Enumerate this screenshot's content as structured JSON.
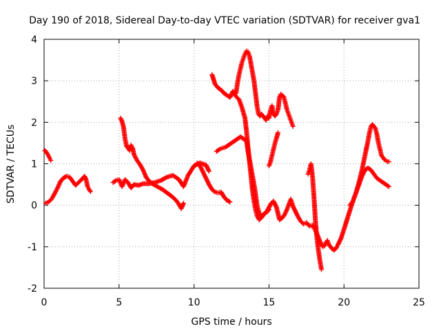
{
  "chart_data": {
    "type": "scatter",
    "title": "Day 190 of 2018, Sidereal Day-to-day VTEC variation (SDTVAR) for receiver gva1",
    "xlabel": "GPS time / hours",
    "ylabel": "SDTVAR / TECUs",
    "xlim": [
      0,
      25
    ],
    "ylim": [
      -2,
      4
    ],
    "x_ticks": [
      "0",
      "5",
      "10",
      "15",
      "20",
      "25"
    ],
    "y_ticks": [
      "-2",
      "-1",
      "0",
      "1",
      "2",
      "3",
      "4"
    ],
    "grid": true,
    "marker": "plus",
    "color": "#ff0000",
    "series": [
      {
        "x": [
          0.05,
          0.15,
          0.25,
          0.35,
          0.45
        ],
        "y": [
          1.32,
          1.28,
          1.22,
          1.15,
          1.08
        ]
      },
      {
        "x": [
          0.1,
          0.3,
          0.5,
          0.7,
          0.9,
          1.1,
          1.3,
          1.5,
          1.7,
          1.9,
          2.1,
          2.3,
          2.5,
          2.7,
          2.8,
          2.9,
          3.0,
          3.1
        ],
        "y": [
          0.05,
          0.08,
          0.15,
          0.28,
          0.42,
          0.58,
          0.66,
          0.7,
          0.68,
          0.58,
          0.48,
          0.55,
          0.62,
          0.7,
          0.62,
          0.45,
          0.38,
          0.33
        ]
      },
      {
        "x": [
          4.6,
          4.8,
          5.0,
          5.2,
          5.4,
          5.6,
          5.8,
          6.0,
          6.3,
          6.6,
          7.0,
          7.4,
          7.8,
          8.2,
          8.6,
          9.0,
          9.3,
          9.6,
          10.0,
          10.4,
          10.8,
          11.0
        ],
        "y": [
          0.55,
          0.6,
          0.62,
          0.45,
          0.62,
          0.55,
          0.42,
          0.5,
          0.48,
          0.52,
          0.52,
          0.55,
          0.6,
          0.68,
          0.72,
          0.62,
          0.45,
          0.72,
          0.95,
          1.02,
          0.97,
          0.82
        ]
      },
      {
        "x": [
          5.1,
          5.2,
          5.3,
          5.4,
          5.5,
          5.6,
          5.7,
          5.8,
          5.9,
          6.0,
          6.2,
          6.4,
          6.6,
          6.8,
          7.0,
          7.3,
          7.6,
          7.9,
          8.2,
          8.5,
          8.8,
          9.0,
          9.15,
          9.3
        ],
        "y": [
          2.1,
          2.02,
          1.88,
          1.6,
          1.42,
          1.38,
          1.32,
          1.45,
          1.38,
          1.22,
          1.08,
          0.98,
          0.85,
          0.68,
          0.58,
          0.5,
          0.44,
          0.38,
          0.3,
          0.22,
          0.12,
          0.02,
          -0.08,
          0.05
        ]
      },
      {
        "x": [
          10.2,
          10.4,
          10.6,
          10.8,
          11.0,
          11.2,
          11.4,
          11.6,
          11.8,
          12.0,
          12.2,
          12.4
        ],
        "y": [
          1.02,
          0.95,
          0.8,
          0.65,
          0.5,
          0.38,
          0.32,
          0.3,
          0.32,
          0.2,
          0.12,
          0.08
        ]
      },
      {
        "x": [
          11.2,
          11.4,
          11.6,
          11.8,
          12.0,
          12.2,
          12.4,
          12.6,
          12.8,
          13.0,
          13.2,
          13.4,
          13.5,
          13.6,
          13.7,
          13.8,
          13.9,
          14.0,
          14.1,
          14.2,
          14.35,
          14.5,
          14.7,
          14.85,
          15.0,
          15.15,
          15.3,
          15.5,
          15.7,
          15.9,
          16.05,
          16.2,
          16.35,
          16.45,
          16.55
        ],
        "y": [
          3.15,
          2.92,
          2.83,
          2.78,
          2.7,
          2.65,
          2.6,
          2.75,
          2.62,
          2.55,
          2.35,
          2.1,
          1.78,
          1.4,
          1.05,
          0.7,
          0.35,
          0.1,
          -0.1,
          -0.25,
          -0.35,
          -0.3,
          -0.2,
          -0.15,
          -0.05,
          0.05,
          0.1,
          -0.05,
          -0.35,
          -0.3,
          -0.22,
          -0.1,
          0.05,
          0.15,
          0.05
        ]
      },
      {
        "x": [
          11.5,
          11.7,
          11.9,
          12.1,
          12.3,
          12.5,
          12.7,
          12.9,
          13.1,
          13.3,
          13.5,
          13.6,
          13.75,
          13.9,
          14.05,
          14.2,
          14.35,
          14.5,
          14.7,
          14.9,
          15.0
        ],
        "y": [
          1.3,
          1.35,
          1.38,
          1.4,
          1.45,
          1.5,
          1.55,
          1.6,
          1.65,
          1.6,
          1.55,
          1.3,
          1.0,
          0.7,
          0.4,
          0.0,
          -0.2,
          -0.25,
          -0.2,
          -0.15,
          -0.1
        ]
      },
      {
        "x": [
          12.8,
          12.9,
          13.0,
          13.1,
          13.2,
          13.3,
          13.4,
          13.5,
          13.6,
          13.7,
          13.8,
          13.9,
          14.0,
          14.1,
          14.2,
          14.3,
          14.4,
          14.5,
          14.6,
          14.7,
          14.8,
          14.9,
          15.0,
          15.1,
          15.2,
          15.3,
          15.4,
          15.5,
          15.6,
          15.7,
          15.8,
          15.9,
          16.0,
          16.1,
          16.2,
          16.3,
          16.4,
          16.5,
          16.6
        ],
        "y": [
          2.7,
          2.95,
          3.15,
          3.3,
          3.45,
          3.55,
          3.65,
          3.72,
          3.7,
          3.6,
          3.4,
          3.2,
          3.0,
          2.7,
          2.4,
          2.2,
          2.15,
          2.2,
          2.15,
          2.1,
          2.05,
          2.15,
          2.1,
          2.3,
          2.4,
          2.2,
          2.15,
          2.2,
          2.3,
          2.6,
          2.68,
          2.65,
          2.6,
          2.45,
          2.3,
          2.2,
          2.1,
          2.0,
          1.9
        ]
      },
      {
        "x": [
          15.0,
          15.1,
          15.2,
          15.3,
          15.4,
          15.5,
          15.6
        ],
        "y": [
          0.95,
          1.05,
          1.2,
          1.35,
          1.5,
          1.62,
          1.75
        ]
      },
      {
        "x": [
          16.5,
          16.7,
          16.9,
          17.1,
          17.3,
          17.5,
          17.7,
          17.9,
          18.1,
          18.3,
          18.5,
          18.6,
          18.7,
          18.8,
          18.9,
          19.0,
          19.1,
          19.2,
          19.35,
          19.5,
          19.6
        ],
        "y": [
          0.05,
          -0.1,
          -0.25,
          -0.38,
          -0.45,
          -0.42,
          -0.5,
          -0.48,
          -0.6,
          -0.78,
          -0.95,
          -1.0,
          -0.98,
          -0.9,
          -0.85,
          -0.95,
          -1.0,
          -1.05,
          -1.08,
          -1.02,
          -0.95
        ]
      },
      {
        "x": [
          17.6,
          17.7,
          17.8,
          17.9,
          18.0,
          18.1,
          18.2,
          18.3,
          18.4,
          18.5
        ],
        "y": [
          0.75,
          0.85,
          1.0,
          0.7,
          0.2,
          -0.4,
          -0.8,
          -1.1,
          -1.35,
          -1.55
        ]
      },
      {
        "x": [
          19.6,
          19.8,
          20.0,
          20.2,
          20.4,
          20.6,
          20.8,
          21.0,
          21.2,
          21.4,
          21.6,
          21.8,
          22.0,
          22.2,
          22.4,
          22.6,
          22.8,
          23.0
        ],
        "y": [
          -0.95,
          -0.8,
          -0.58,
          -0.35,
          -0.12,
          0.1,
          0.3,
          0.5,
          0.7,
          0.85,
          0.9,
          0.85,
          0.75,
          0.65,
          0.6,
          0.55,
          0.5,
          0.45
        ]
      },
      {
        "x": [
          20.4,
          20.6,
          20.8,
          21.0,
          21.2,
          21.4,
          21.6,
          21.7,
          21.8,
          21.9,
          22.0,
          22.1,
          22.2,
          22.3,
          22.4,
          22.5,
          22.6,
          22.7,
          22.8,
          22.9,
          23.0
        ],
        "y": [
          0.0,
          0.1,
          0.3,
          0.55,
          0.85,
          1.2,
          1.55,
          1.75,
          1.9,
          1.95,
          1.9,
          1.85,
          1.7,
          1.5,
          1.35,
          1.2,
          1.15,
          1.1,
          1.08,
          1.05,
          1.05
        ]
      }
    ]
  }
}
